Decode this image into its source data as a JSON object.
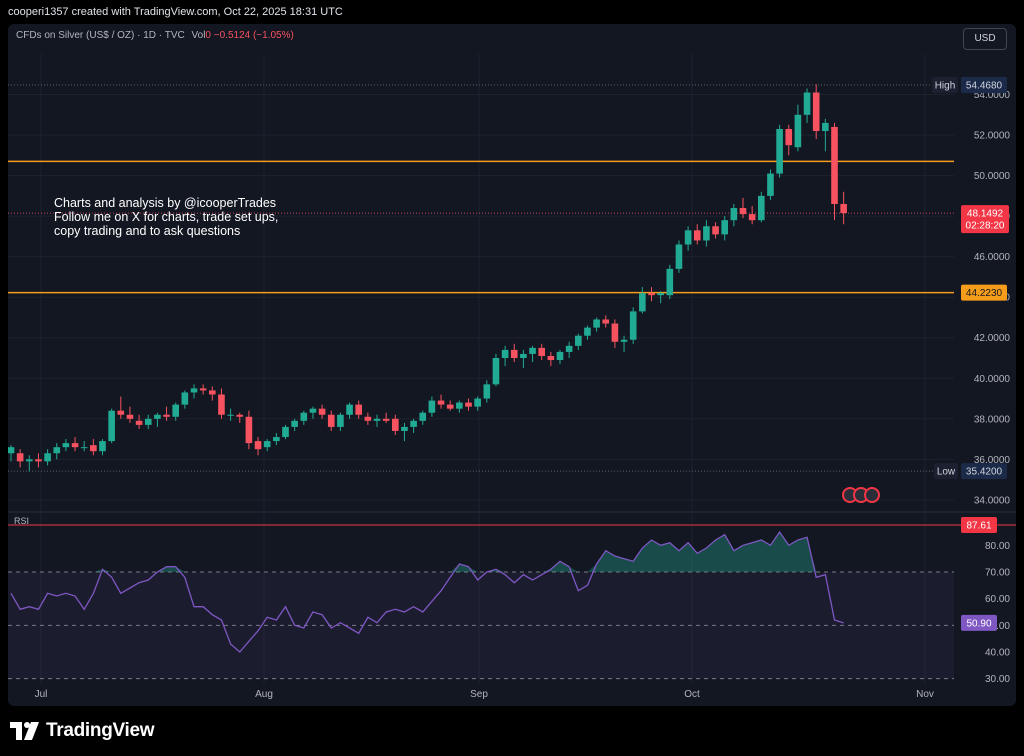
{
  "header": {
    "attribution": "cooperi1357 created with TradingView.com, Oct 22, 2025 18:31 UTC"
  },
  "legend": {
    "symbol": "CFDs on Silver (US$ / OZ) · 1D · TVC",
    "vol_label": "Vol",
    "vol_value": "0",
    "change": "−0.5124 (−1.05%)"
  },
  "currency_button": "USD",
  "annotation": "Charts and analysis by @icooperTrades\nFollow me on X for charts, trade set ups,\ncopy trading and to ask questions",
  "rsi_title": "RSI",
  "brand": "TradingView",
  "colors": {
    "up": "#22ab94",
    "down": "#f7525f",
    "level": "#f59d1a",
    "rsi": "#7e57c2",
    "rsi_overbought_line": "#f23645"
  },
  "chart_data": [
    {
      "type": "candlestick",
      "title": "CFDs on Silver (US$ / OZ) · 1D · TVC",
      "x_tick_labels": [
        "Jul",
        "Aug",
        "Sep",
        "Oct",
        "Nov"
      ],
      "y_tick_labels": [
        "34.0000",
        "36.0000",
        "38.0000",
        "40.0000",
        "42.0000",
        "44.0000",
        "46.0000",
        "48.0000",
        "50.0000",
        "52.0000",
        "54.0000"
      ],
      "ylim": [
        33.5,
        56.0
      ],
      "high_label": "High",
      "high": "54.4680",
      "low_label": "Low",
      "low": "35.4200",
      "last_price": "48.1492",
      "countdown": "02:28:20",
      "horizontal_levels": [
        {
          "value": 50.7,
          "label": ""
        },
        {
          "value": 44.223,
          "label": "44.2230"
        }
      ],
      "candles": [
        {
          "o": 36.3,
          "h": 36.7,
          "l": 35.9,
          "c": 36.6
        },
        {
          "o": 36.3,
          "h": 36.5,
          "l": 35.6,
          "c": 35.9
        },
        {
          "o": 35.9,
          "h": 36.2,
          "l": 35.4,
          "c": 36.0
        },
        {
          "o": 36.0,
          "h": 36.3,
          "l": 35.6,
          "c": 35.9
        },
        {
          "o": 35.9,
          "h": 36.5,
          "l": 35.7,
          "c": 36.3
        },
        {
          "o": 36.3,
          "h": 36.8,
          "l": 36.0,
          "c": 36.6
        },
        {
          "o": 36.6,
          "h": 37.0,
          "l": 36.4,
          "c": 36.8
        },
        {
          "o": 36.8,
          "h": 37.1,
          "l": 36.4,
          "c": 36.6
        },
        {
          "o": 36.6,
          "h": 36.9,
          "l": 36.4,
          "c": 36.6
        },
        {
          "o": 36.7,
          "h": 37.0,
          "l": 36.2,
          "c": 36.4
        },
        {
          "o": 36.4,
          "h": 37.0,
          "l": 36.2,
          "c": 36.9
        },
        {
          "o": 36.9,
          "h": 38.5,
          "l": 36.8,
          "c": 38.4
        },
        {
          "o": 38.4,
          "h": 39.1,
          "l": 38.0,
          "c": 38.2
        },
        {
          "o": 38.2,
          "h": 38.6,
          "l": 37.8,
          "c": 38.0
        },
        {
          "o": 37.9,
          "h": 38.2,
          "l": 37.5,
          "c": 37.7
        },
        {
          "o": 37.7,
          "h": 38.2,
          "l": 37.5,
          "c": 38.0
        },
        {
          "o": 38.0,
          "h": 38.3,
          "l": 37.6,
          "c": 38.2
        },
        {
          "o": 38.2,
          "h": 38.6,
          "l": 37.9,
          "c": 38.1
        },
        {
          "o": 38.1,
          "h": 38.8,
          "l": 37.9,
          "c": 38.7
        },
        {
          "o": 38.7,
          "h": 39.4,
          "l": 38.5,
          "c": 39.3
        },
        {
          "o": 39.3,
          "h": 39.7,
          "l": 39.0,
          "c": 39.5
        },
        {
          "o": 39.5,
          "h": 39.7,
          "l": 39.2,
          "c": 39.4
        },
        {
          "o": 39.4,
          "h": 39.6,
          "l": 38.9,
          "c": 39.2
        },
        {
          "o": 39.2,
          "h": 39.5,
          "l": 38.0,
          "c": 38.2
        },
        {
          "o": 38.2,
          "h": 38.5,
          "l": 37.9,
          "c": 38.2
        },
        {
          "o": 38.2,
          "h": 38.3,
          "l": 37.8,
          "c": 38.1
        },
        {
          "o": 38.1,
          "h": 38.4,
          "l": 36.5,
          "c": 36.8
        },
        {
          "o": 36.9,
          "h": 37.1,
          "l": 36.2,
          "c": 36.5
        },
        {
          "o": 36.6,
          "h": 37.0,
          "l": 36.4,
          "c": 36.9
        },
        {
          "o": 36.9,
          "h": 37.3,
          "l": 36.7,
          "c": 37.1
        },
        {
          "o": 37.1,
          "h": 37.7,
          "l": 37.0,
          "c": 37.6
        },
        {
          "o": 37.6,
          "h": 38.0,
          "l": 37.4,
          "c": 37.9
        },
        {
          "o": 37.9,
          "h": 38.4,
          "l": 37.7,
          "c": 38.3
        },
        {
          "o": 38.3,
          "h": 38.6,
          "l": 38.0,
          "c": 38.5
        },
        {
          "o": 38.5,
          "h": 38.7,
          "l": 38.0,
          "c": 38.2
        },
        {
          "o": 38.2,
          "h": 38.4,
          "l": 37.4,
          "c": 37.6
        },
        {
          "o": 37.6,
          "h": 38.3,
          "l": 37.4,
          "c": 38.2
        },
        {
          "o": 38.2,
          "h": 38.8,
          "l": 38.0,
          "c": 38.7
        },
        {
          "o": 38.7,
          "h": 38.9,
          "l": 38.0,
          "c": 38.2
        },
        {
          "o": 38.1,
          "h": 38.3,
          "l": 37.7,
          "c": 37.9
        },
        {
          "o": 37.9,
          "h": 38.2,
          "l": 37.6,
          "c": 38.0
        },
        {
          "o": 38.0,
          "h": 38.3,
          "l": 37.8,
          "c": 37.9
        },
        {
          "o": 38.0,
          "h": 38.2,
          "l": 37.2,
          "c": 37.4
        },
        {
          "o": 37.4,
          "h": 37.8,
          "l": 36.9,
          "c": 37.6
        },
        {
          "o": 37.6,
          "h": 38.0,
          "l": 37.3,
          "c": 37.9
        },
        {
          "o": 37.9,
          "h": 38.4,
          "l": 37.7,
          "c": 38.3
        },
        {
          "o": 38.3,
          "h": 39.1,
          "l": 38.1,
          "c": 38.9
        },
        {
          "o": 38.9,
          "h": 39.2,
          "l": 38.5,
          "c": 38.7
        },
        {
          "o": 38.7,
          "h": 38.9,
          "l": 38.4,
          "c": 38.5
        },
        {
          "o": 38.5,
          "h": 38.9,
          "l": 38.3,
          "c": 38.8
        },
        {
          "o": 38.8,
          "h": 39.0,
          "l": 38.4,
          "c": 38.6
        },
        {
          "o": 38.6,
          "h": 39.1,
          "l": 38.4,
          "c": 39.0
        },
        {
          "o": 39.0,
          "h": 39.9,
          "l": 38.8,
          "c": 39.7
        },
        {
          "o": 39.7,
          "h": 41.2,
          "l": 39.6,
          "c": 41.0
        },
        {
          "o": 41.0,
          "h": 41.6,
          "l": 40.6,
          "c": 41.4
        },
        {
          "o": 41.4,
          "h": 41.7,
          "l": 40.8,
          "c": 41.0
        },
        {
          "o": 41.0,
          "h": 41.4,
          "l": 40.5,
          "c": 41.2
        },
        {
          "o": 41.2,
          "h": 41.6,
          "l": 40.8,
          "c": 41.5
        },
        {
          "o": 41.5,
          "h": 41.7,
          "l": 40.9,
          "c": 41.1
        },
        {
          "o": 41.1,
          "h": 41.3,
          "l": 40.6,
          "c": 40.9
        },
        {
          "o": 40.9,
          "h": 41.4,
          "l": 40.7,
          "c": 41.3
        },
        {
          "o": 41.3,
          "h": 41.8,
          "l": 41.0,
          "c": 41.6
        },
        {
          "o": 41.6,
          "h": 42.2,
          "l": 41.4,
          "c": 42.1
        },
        {
          "o": 42.1,
          "h": 42.6,
          "l": 41.9,
          "c": 42.5
        },
        {
          "o": 42.5,
          "h": 43.0,
          "l": 42.3,
          "c": 42.9
        },
        {
          "o": 42.9,
          "h": 43.1,
          "l": 42.5,
          "c": 42.7
        },
        {
          "o": 42.7,
          "h": 42.9,
          "l": 41.5,
          "c": 41.8
        },
        {
          "o": 41.8,
          "h": 42.1,
          "l": 41.3,
          "c": 41.9
        },
        {
          "o": 41.9,
          "h": 43.5,
          "l": 41.7,
          "c": 43.3
        },
        {
          "o": 43.3,
          "h": 44.5,
          "l": 43.2,
          "c": 44.2
        },
        {
          "o": 44.2,
          "h": 44.5,
          "l": 43.8,
          "c": 44.1
        },
        {
          "o": 44.1,
          "h": 44.3,
          "l": 43.7,
          "c": 44.2
        },
        {
          "o": 44.1,
          "h": 45.6,
          "l": 43.9,
          "c": 45.4
        },
        {
          "o": 45.4,
          "h": 46.8,
          "l": 45.2,
          "c": 46.6
        },
        {
          "o": 46.6,
          "h": 47.5,
          "l": 46.3,
          "c": 47.3
        },
        {
          "o": 47.3,
          "h": 47.6,
          "l": 46.6,
          "c": 46.8
        },
        {
          "o": 46.8,
          "h": 47.8,
          "l": 46.5,
          "c": 47.5
        },
        {
          "o": 47.5,
          "h": 47.7,
          "l": 46.9,
          "c": 47.1
        },
        {
          "o": 47.1,
          "h": 48.0,
          "l": 46.8,
          "c": 47.8
        },
        {
          "o": 47.8,
          "h": 48.6,
          "l": 47.5,
          "c": 48.4
        },
        {
          "o": 48.4,
          "h": 48.9,
          "l": 47.9,
          "c": 48.1
        },
        {
          "o": 48.1,
          "h": 48.5,
          "l": 47.6,
          "c": 47.8
        },
        {
          "o": 47.8,
          "h": 49.2,
          "l": 47.7,
          "c": 49.0
        },
        {
          "o": 49.0,
          "h": 50.3,
          "l": 48.8,
          "c": 50.1
        },
        {
          "o": 50.1,
          "h": 52.5,
          "l": 49.9,
          "c": 52.3
        },
        {
          "o": 52.3,
          "h": 52.5,
          "l": 51.0,
          "c": 51.5
        },
        {
          "o": 51.4,
          "h": 53.5,
          "l": 51.2,
          "c": 53.0
        },
        {
          "o": 53.0,
          "h": 54.3,
          "l": 52.6,
          "c": 54.1
        },
        {
          "o": 54.1,
          "h": 54.5,
          "l": 51.8,
          "c": 52.2
        },
        {
          "o": 52.2,
          "h": 52.8,
          "l": 51.2,
          "c": 52.6
        },
        {
          "o": 52.4,
          "h": 52.6,
          "l": 47.8,
          "c": 48.6
        },
        {
          "o": 48.6,
          "h": 49.2,
          "l": 47.6,
          "c": 48.15
        }
      ]
    },
    {
      "type": "line",
      "title": "RSI",
      "y_tick_labels": [
        "30.00",
        "40.00",
        "50.00",
        "60.00",
        "70.00",
        "80.00",
        "90.00"
      ],
      "ylim": [
        28,
        91
      ],
      "bands": [
        30,
        50,
        70
      ],
      "overbought_level": "87.61",
      "last_value": "50.90",
      "values": [
        62,
        56,
        57,
        56,
        62,
        61,
        62,
        61,
        56,
        62,
        71,
        68,
        62,
        64,
        66,
        67,
        70,
        72,
        72,
        68,
        57,
        57,
        54,
        52,
        43,
        40,
        44,
        48,
        53,
        52,
        57,
        50,
        49,
        55,
        54,
        49,
        51,
        49,
        47,
        53,
        51,
        55,
        56,
        55,
        57,
        55,
        59,
        63,
        68,
        73,
        72,
        67,
        70,
        71,
        69,
        66,
        69,
        67,
        69,
        71,
        74,
        72,
        63,
        65,
        73,
        78,
        76,
        75,
        74,
        79,
        82,
        80,
        81,
        78,
        81,
        77,
        79,
        82,
        84,
        78,
        80,
        81,
        82,
        80,
        85,
        80,
        82,
        83,
        68,
        69,
        52,
        50.9
      ]
    }
  ]
}
